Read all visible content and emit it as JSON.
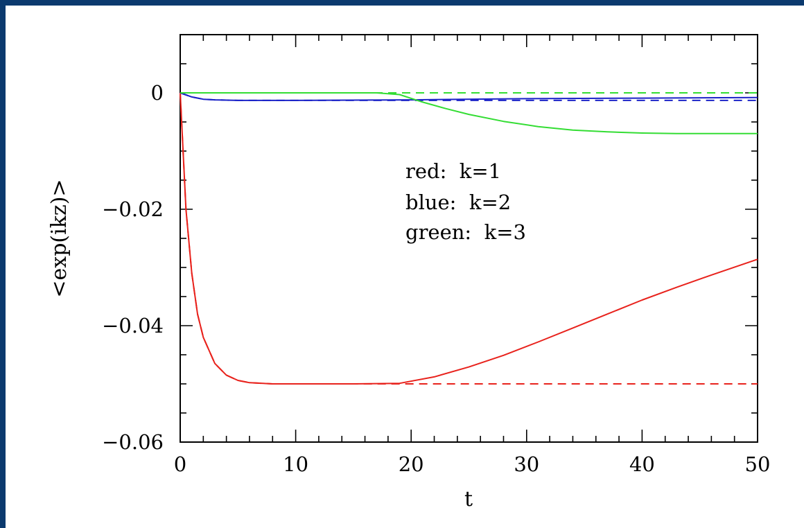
{
  "chart_data": {
    "type": "line",
    "title": "",
    "xlabel": "t",
    "ylabel": "<exp(ikz)>",
    "xlim": [
      0,
      50
    ],
    "ylim": [
      -0.06,
      0.01
    ],
    "x_ticks": [
      0,
      10,
      20,
      30,
      40,
      50
    ],
    "x_tick_labels": [
      "0",
      "10",
      "20",
      "30",
      "40",
      "50"
    ],
    "y_ticks": [
      0,
      -0.02,
      -0.04,
      -0.06
    ],
    "y_tick_labels": [
      "0",
      "−0.02",
      "−0.04",
      "−0.06"
    ],
    "grid": false,
    "annotations": [
      "red:  k=1",
      "blue:  k=2",
      "green:  k=3"
    ],
    "colors": {
      "red": "#e8221c",
      "blue": "#1a22c8",
      "green": "#33dd33",
      "frame": "#0b3a6e"
    },
    "series": [
      {
        "color": "red",
        "style": "solid",
        "x": [
          0,
          0.5,
          1,
          1.5,
          2,
          3,
          4,
          5,
          6,
          8,
          10,
          15,
          19,
          22,
          25,
          28,
          31,
          34,
          37,
          40,
          43,
          46,
          50
        ],
        "y": [
          0,
          -0.02,
          -0.031,
          -0.038,
          -0.042,
          -0.0465,
          -0.0485,
          -0.0494,
          -0.0498,
          -0.05,
          -0.05,
          -0.05,
          -0.0499,
          -0.0488,
          -0.0471,
          -0.0451,
          -0.0428,
          -0.0404,
          -0.038,
          -0.0356,
          -0.0334,
          -0.0313,
          -0.0286
        ]
      },
      {
        "color": "red",
        "style": "dashed",
        "x": [
          0,
          0.5,
          1,
          1.5,
          2,
          3,
          4,
          5,
          6,
          8,
          10,
          20,
          30,
          40,
          50
        ],
        "y": [
          0,
          -0.02,
          -0.031,
          -0.038,
          -0.042,
          -0.0465,
          -0.0485,
          -0.0494,
          -0.0498,
          -0.05,
          -0.05,
          -0.05,
          -0.05,
          -0.05,
          -0.05
        ]
      },
      {
        "color": "blue",
        "style": "solid",
        "x": [
          0,
          1,
          2,
          3,
          5,
          10,
          20,
          30,
          40,
          50
        ],
        "y": [
          0,
          -0.0007,
          -0.0011,
          -0.0012,
          -0.0013,
          -0.0013,
          -0.0012,
          -0.001,
          -0.0009,
          -0.0008
        ]
      },
      {
        "color": "blue",
        "style": "dashed",
        "x": [
          0,
          1,
          2,
          3,
          5,
          10,
          20,
          30,
          40,
          50
        ],
        "y": [
          0,
          -0.0007,
          -0.0011,
          -0.0012,
          -0.0013,
          -0.0013,
          -0.0013,
          -0.0013,
          -0.0013,
          -0.0013
        ]
      },
      {
        "color": "green",
        "style": "solid",
        "x": [
          0,
          10,
          17,
          19,
          21,
          23,
          25,
          28,
          31,
          34,
          37,
          40,
          43,
          46,
          50
        ],
        "y": [
          0,
          0,
          0,
          -0.0003,
          -0.0016,
          -0.0027,
          -0.0037,
          -0.0049,
          -0.0058,
          -0.0064,
          -0.0067,
          -0.0069,
          -0.007,
          -0.007,
          -0.007
        ]
      },
      {
        "color": "green",
        "style": "dashed",
        "x": [
          0,
          10,
          20,
          30,
          40,
          50
        ],
        "y": [
          0,
          0,
          0,
          0,
          0,
          0
        ]
      }
    ]
  }
}
